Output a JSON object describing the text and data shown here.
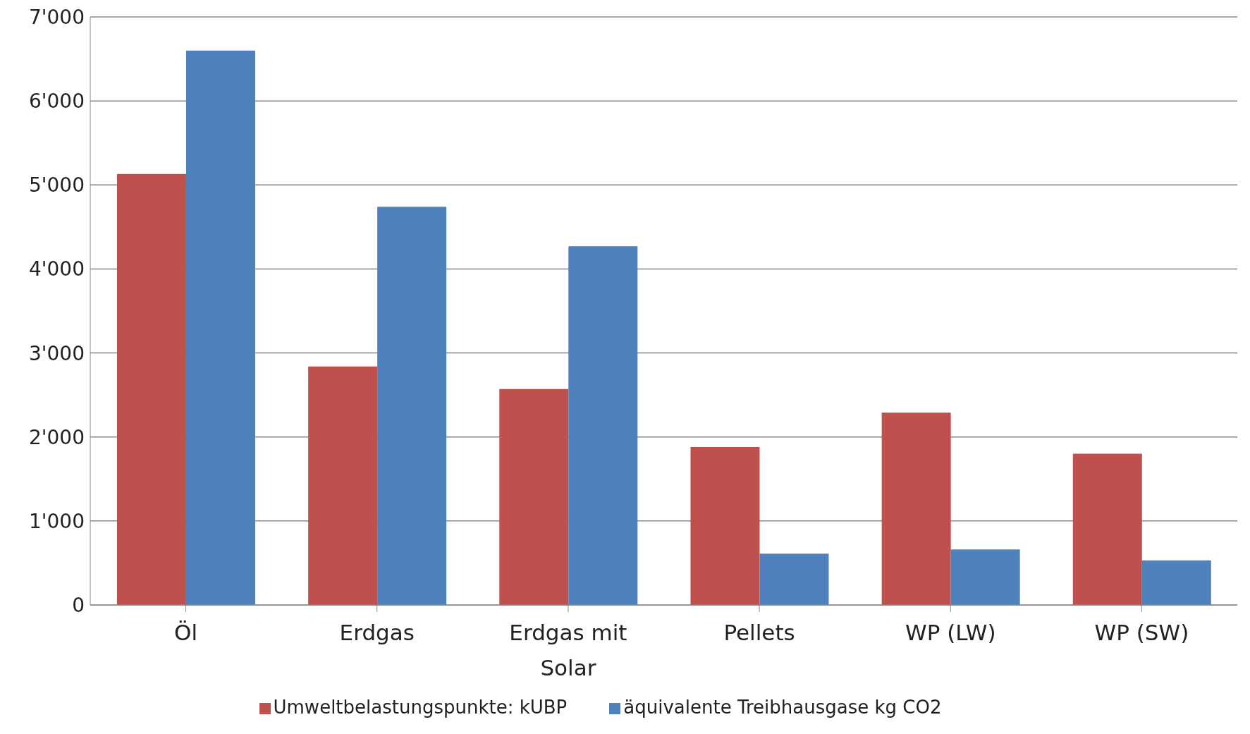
{
  "chart_data": {
    "type": "bar",
    "categories": [
      "Öl",
      "Erdgas",
      "Erdgas mit Solar",
      "Pellets",
      "WP (LW)",
      "WP (SW)"
    ],
    "series": [
      {
        "name": "Umweltbelastungspunkte: kUBP",
        "color": "#c0504d",
        "values": [
          5130,
          2840,
          2570,
          1880,
          2290,
          1800
        ]
      },
      {
        "name": "äquivalente Treibhausgase kg CO2",
        "color": "#4f81bd",
        "values": [
          6600,
          4740,
          4270,
          610,
          660,
          530
        ]
      }
    ],
    "ylim": [
      0,
      7000
    ],
    "yticks": [
      0,
      {
        "value": 1000,
        "label": "1'000"
      },
      {
        "value": 2000,
        "label": "2'000"
      },
      {
        "value": 3000,
        "label": "3'000"
      },
      {
        "value": 4000,
        "label": "4'000"
      },
      {
        "value": 5000,
        "label": "5'000"
      },
      {
        "value": 6000,
        "label": "6'000"
      },
      {
        "value": 7000,
        "label": "7'000"
      }
    ],
    "grid": "y",
    "legend": "bottom"
  }
}
